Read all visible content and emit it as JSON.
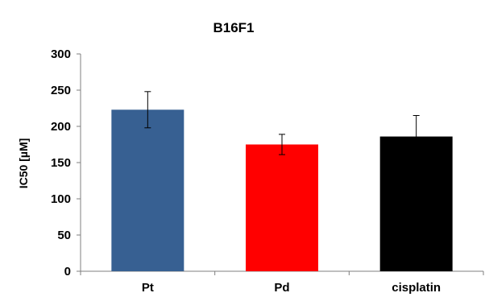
{
  "chart_data": {
    "type": "bar",
    "title": "B16F1",
    "xlabel": "",
    "ylabel": "IC50 [µM]",
    "categories": [
      "Pt",
      "Pd",
      "cisplatin"
    ],
    "values": [
      223,
      175,
      186
    ],
    "errors": [
      25,
      14,
      29
    ],
    "bar_colors": [
      "#376092",
      "#ff0000",
      "#000000"
    ],
    "ylim": [
      0,
      300
    ],
    "yticks": [
      0,
      50,
      100,
      150,
      200,
      250,
      300
    ],
    "grid": false,
    "legend": "none"
  }
}
